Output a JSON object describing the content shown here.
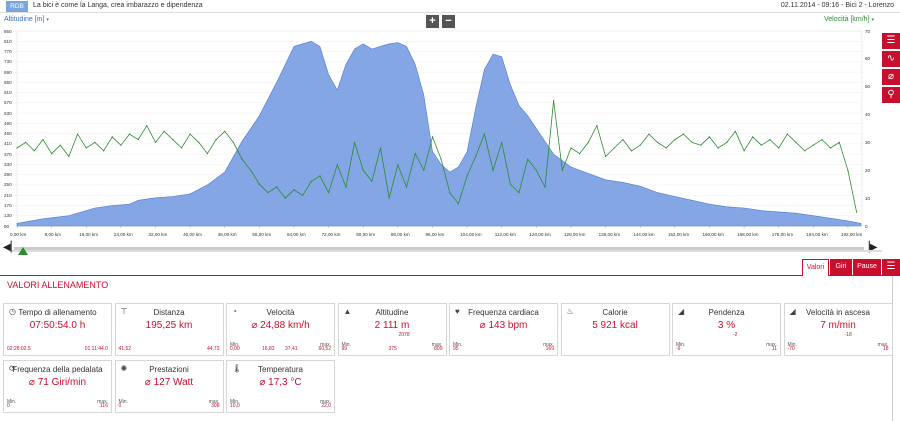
{
  "header": {
    "logo": "RDB",
    "title": "La bici è come la Langa, crea imbarazzo e dipendenza",
    "meta": "02.11.2014  -  09:16  -  Bici 2  -  Lorenzo"
  },
  "chart_header": {
    "left_label": "Altitudine [m]",
    "right_label": "Velocità [km/h]",
    "zoom_in": "+",
    "zoom_out": "−"
  },
  "chart_data": {
    "type": "area",
    "x_unit": "km",
    "xlim": [
      0,
      195.25
    ],
    "x_ticks": [
      "0,00 km",
      "8,00 km",
      "16,00 km",
      "24,00 km",
      "32,00 km",
      "40,00 km",
      "48,00 km",
      "56,00 km",
      "64,00 km",
      "72,00 km",
      "80,00 km",
      "88,00 km",
      "96,00 km",
      "104,00 km",
      "112,00 km",
      "120,00 km",
      "128,00 km",
      "136,00 km",
      "144,00 km",
      "152,00 km",
      "160,00 km",
      "168,00 km",
      "176,00 km",
      "184,00 km",
      "192,00 km"
    ],
    "left_axis": {
      "label": "Altitudine [m]",
      "ylim": [
        90,
        850
      ],
      "ticks": [
        "850",
        "810",
        "770",
        "730",
        "690",
        "650",
        "610",
        "570",
        "530",
        "490",
        "450",
        "410",
        "370",
        "330",
        "290",
        "250",
        "210",
        "170",
        "130",
        "90"
      ]
    },
    "right_axis": {
      "label": "Velocità [km/h]",
      "ylim": [
        0,
        70
      ],
      "ticks": [
        "70",
        "60",
        "50",
        "40",
        "30",
        "20",
        "10",
        "0"
      ]
    },
    "series": [
      {
        "name": "Altitudine [m]",
        "axis": "left",
        "color": "#6f97e0",
        "type": "area",
        "x": [
          0,
          6,
          12,
          18,
          22,
          26,
          28,
          32,
          36,
          40,
          44,
          48,
          52,
          56,
          60,
          64,
          68,
          70,
          72,
          74,
          76,
          78,
          80,
          82,
          84,
          86,
          88,
          90,
          92,
          94,
          96,
          98,
          100,
          102,
          104,
          106,
          108,
          110,
          112,
          114,
          116,
          118,
          120,
          124,
          128,
          132,
          136,
          140,
          144,
          148,
          152,
          156,
          160,
          164,
          168,
          172,
          176,
          180,
          184,
          188,
          192,
          195
        ],
        "y": [
          100,
          118,
          130,
          160,
          170,
          175,
          190,
          200,
          205,
          215,
          250,
          300,
          420,
          520,
          650,
          790,
          810,
          790,
          680,
          620,
          720,
          780,
          800,
          780,
          790,
          800,
          805,
          790,
          720,
          600,
          380,
          330,
          300,
          320,
          380,
          550,
          700,
          760,
          750,
          640,
          560,
          520,
          470,
          370,
          320,
          295,
          270,
          260,
          245,
          220,
          205,
          190,
          175,
          165,
          160,
          150,
          145,
          140,
          130,
          120,
          110,
          100
        ]
      },
      {
        "name": "Velocità [km/h]",
        "axis": "right",
        "color": "#2e8b34",
        "type": "line",
        "x": [
          0,
          2,
          4,
          6,
          8,
          10,
          12,
          14,
          16,
          18,
          20,
          22,
          24,
          26,
          28,
          30,
          32,
          34,
          36,
          38,
          40,
          42,
          44,
          46,
          48,
          50,
          52,
          54,
          56,
          58,
          60,
          62,
          64,
          66,
          68,
          70,
          72,
          74,
          76,
          78,
          80,
          82,
          84,
          86,
          88,
          90,
          92,
          94,
          96,
          98,
          100,
          102,
          104,
          106,
          108,
          110,
          112,
          114,
          116,
          118,
          120,
          122,
          124,
          126,
          128,
          130,
          132,
          134,
          136,
          138,
          140,
          142,
          144,
          146,
          148,
          150,
          152,
          154,
          156,
          158,
          160,
          162,
          164,
          166,
          168,
          170,
          172,
          174,
          176,
          178,
          180,
          182,
          184,
          186,
          188,
          190,
          192,
          194
        ],
        "y": [
          28,
          30,
          27,
          31,
          26,
          29,
          25,
          33,
          28,
          30,
          27,
          32,
          29,
          33,
          31,
          36,
          30,
          34,
          31,
          28,
          33,
          30,
          26,
          31,
          34,
          30,
          24,
          20,
          15,
          12,
          14,
          10,
          13,
          11,
          16,
          18,
          12,
          22,
          14,
          30,
          20,
          16,
          28,
          10,
          22,
          14,
          26,
          20,
          32,
          24,
          12,
          8,
          18,
          25,
          33,
          20,
          30,
          15,
          12,
          24,
          20,
          14,
          45,
          20,
          28,
          26,
          30,
          36,
          25,
          28,
          31,
          27,
          29,
          33,
          30,
          28,
          31,
          33,
          30,
          29,
          32,
          28,
          30,
          34,
          27,
          32,
          29,
          31,
          28,
          33,
          30,
          27,
          29,
          31,
          28,
          30,
          20,
          5
        ]
      }
    ]
  },
  "side_tools": [
    {
      "icon": "list-icon",
      "glyph": "☰"
    },
    {
      "icon": "line-chart-icon",
      "glyph": "∿"
    },
    {
      "icon": "slope-icon",
      "glyph": "⌀"
    },
    {
      "icon": "map-marker-icon",
      "glyph": "⚲"
    }
  ],
  "section": {
    "title": "VALORI ALLENAMENTO",
    "tabs": [
      "Valori",
      "Giri",
      "Pause"
    ],
    "menu_icon": "list-icon"
  },
  "cards": [
    {
      "name": "tempo",
      "icon": "clock-icon",
      "glyph": "◷",
      "title": "Tempo di allenamento",
      "value": "07:50:54.0 h",
      "a": "02:28:02.5",
      "b": "01:11:44.0"
    },
    {
      "name": "distanza",
      "icon": "road-icon",
      "glyph": "⊤",
      "title": "Distanza",
      "value": "195,25 km",
      "a": "41,52",
      "b": "44,73"
    },
    {
      "name": "velocita",
      "icon": "speedometer-icon",
      "glyph": "◔",
      "title": "Velocità",
      "value": "⌀ 24,88 km/h",
      "min": "0,00",
      "mid1": "16,83",
      "mid2": "37,41",
      "max": "60,52"
    },
    {
      "name": "altitudine",
      "icon": "mountain-icon",
      "glyph": "▲",
      "title": "Altitudine",
      "value": "2 111 m",
      "sub": "2078",
      "min": "99",
      "mid": "375",
      "max": "809"
    },
    {
      "name": "fc",
      "icon": "heart-icon",
      "glyph": "♥",
      "title": "Frequenza cardiaca",
      "value": "⌀ 143 bpm",
      "min": "95",
      "max": "169"
    },
    {
      "name": "calorie",
      "icon": "flame-icon",
      "glyph": "♨",
      "title": "Calorie",
      "value": "5 921 kcal"
    },
    {
      "name": "pendenza",
      "icon": "slope-icon",
      "glyph": "◢",
      "title": "Pendenza",
      "value": "3 %",
      "sub": "-2",
      "min": "-9",
      "max": "11"
    },
    {
      "name": "vasc",
      "icon": "climb-icon",
      "glyph": "◢",
      "title": "Velocità in ascesa",
      "value": "7 m/min",
      "sub": "-18",
      "min": "-70",
      "max": "18"
    },
    {
      "name": "cadenza",
      "icon": "cadence-icon",
      "glyph": "⟳",
      "title": "Frequenza della pedalata",
      "value": "⌀ 71 Giri/min",
      "min": "0",
      "max": "116"
    },
    {
      "name": "potenza",
      "icon": "sun-icon",
      "glyph": "✺",
      "title": "Prestazioni",
      "value": "⌀ 127 Watt",
      "min": "0",
      "max": "308"
    },
    {
      "name": "temp",
      "icon": "thermometer-icon",
      "glyph": "🌡",
      "title": "Temperatura",
      "value": "⌀ 17,3 °C",
      "min": "10,0",
      "max": "22,0"
    }
  ],
  "labels": {
    "min": "Min.",
    "max": "max."
  }
}
